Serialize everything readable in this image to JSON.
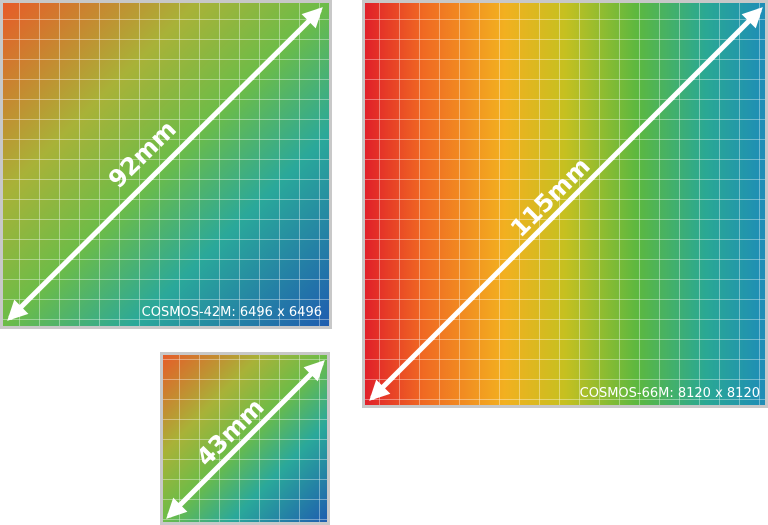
{
  "sensors": [
    {
      "diagonal": "92mm",
      "caption": "COSMOS-42M: 6496 x 6496"
    },
    {
      "diagonal": "115mm",
      "caption": "COSMOS-66M: 8120 x 8120"
    },
    {
      "diagonal": "43mm"
    }
  ]
}
